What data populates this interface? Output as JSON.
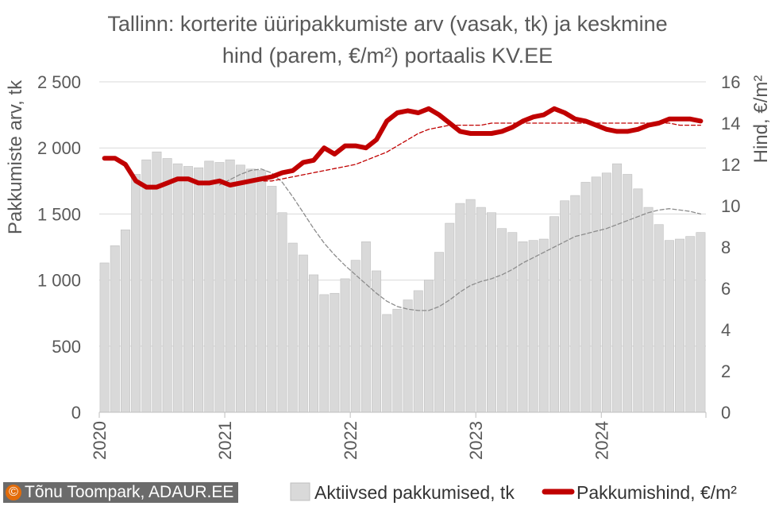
{
  "chart_data": {
    "type": "bar+line",
    "title_line1": "Tallinn: korterite üüripakkumiste arv (vasak, tk) ja keskmine",
    "title_line2": "hind (parem, €/m²) portaalis KV.EE",
    "ylabel_left": "Pakkumiste arv, tk",
    "ylabel_right": "Hind, €/m²",
    "ylim_left": [
      0,
      2500
    ],
    "ylim_right": [
      0,
      16
    ],
    "yticks_left": [
      {
        "value": 0,
        "label": "0"
      },
      {
        "value": 500,
        "label": "500"
      },
      {
        "value": 1000,
        "label": "1 000"
      },
      {
        "value": 1500,
        "label": "1 500"
      },
      {
        "value": 2000,
        "label": "2 000"
      },
      {
        "value": 2500,
        "label": "2 500"
      }
    ],
    "yticks_right": [
      {
        "value": 0,
        "label": "0"
      },
      {
        "value": 2,
        "label": "2"
      },
      {
        "value": 4,
        "label": "4"
      },
      {
        "value": 6,
        "label": "6"
      },
      {
        "value": 8,
        "label": "8"
      },
      {
        "value": 10,
        "label": "10"
      },
      {
        "value": 12,
        "label": "12"
      },
      {
        "value": 14,
        "label": "14"
      },
      {
        "value": 16,
        "label": "16"
      }
    ],
    "xticks": [
      {
        "index": 0,
        "label": "2020"
      },
      {
        "index": 12,
        "label": "2021"
      },
      {
        "index": 24,
        "label": "2022"
      },
      {
        "index": 36,
        "label": "2023"
      },
      {
        "index": 48,
        "label": "2024"
      }
    ],
    "months_count": 58,
    "grid": "horizontal",
    "legend_position": "bottom",
    "series": [
      {
        "name": "Aktiivsed pakkumised, tk",
        "type": "bar",
        "axis": "left",
        "color": "#d9d9d9",
        "values": [
          1130,
          1260,
          1380,
          1800,
          1910,
          1970,
          1920,
          1880,
          1860,
          1850,
          1900,
          1890,
          1910,
          1870,
          1840,
          1830,
          1710,
          1510,
          1280,
          1190,
          1040,
          890,
          900,
          1010,
          1150,
          1290,
          1070,
          740,
          780,
          850,
          920,
          1000,
          1210,
          1430,
          1580,
          1610,
          1550,
          1510,
          1390,
          1360,
          1290,
          1300,
          1310,
          1480,
          1600,
          1640,
          1740,
          1780,
          1810,
          1880,
          1800,
          1690,
          1550,
          1420,
          1300,
          1310,
          1330,
          1360
        ]
      },
      {
        "name": "",
        "type": "line-dashed",
        "axis": "left",
        "color": "#8c8c8c",
        "values": [
          null,
          null,
          null,
          null,
          null,
          null,
          null,
          null,
          null,
          null,
          null,
          1720,
          1760,
          1800,
          1830,
          1840,
          1810,
          1740,
          1630,
          1510,
          1390,
          1280,
          1190,
          1110,
          1040,
          970,
          900,
          840,
          800,
          780,
          770,
          770,
          800,
          850,
          910,
          960,
          990,
          1010,
          1040,
          1080,
          1130,
          1170,
          1210,
          1250,
          1290,
          1330,
          1350,
          1370,
          1390,
          1420,
          1450,
          1480,
          1510,
          1530,
          1540,
          1530,
          1520,
          1500
        ]
      },
      {
        "name": "Pakkumishind, €/m²",
        "type": "line",
        "axis": "right",
        "color": "#c00000",
        "values": [
          12.3,
          12.3,
          12.0,
          11.2,
          10.9,
          10.9,
          11.1,
          11.3,
          11.3,
          11.1,
          11.1,
          11.2,
          11.0,
          11.1,
          11.2,
          11.3,
          11.4,
          11.6,
          11.7,
          12.1,
          12.2,
          12.8,
          12.5,
          12.9,
          12.9,
          12.8,
          13.2,
          14.1,
          14.5,
          14.6,
          14.5,
          14.7,
          14.4,
          14.0,
          13.6,
          13.5,
          13.5,
          13.5,
          13.6,
          13.8,
          14.1,
          14.3,
          14.4,
          14.7,
          14.5,
          14.2,
          14.1,
          13.9,
          13.7,
          13.6,
          13.6,
          13.7,
          13.9,
          14.0,
          14.2,
          14.2,
          14.2,
          14.1
        ]
      },
      {
        "name": "",
        "type": "line-dashed",
        "axis": "right",
        "color": "#c00000",
        "values": [
          null,
          null,
          null,
          null,
          null,
          null,
          null,
          null,
          null,
          null,
          null,
          11.2,
          11.1,
          11.1,
          11.2,
          11.2,
          11.2,
          11.3,
          11.4,
          11.5,
          11.6,
          11.7,
          11.8,
          11.9,
          12.0,
          12.2,
          12.4,
          12.6,
          12.9,
          13.2,
          13.5,
          13.7,
          13.8,
          13.9,
          13.9,
          13.9,
          13.9,
          14.0,
          14.0,
          14.0,
          14.0,
          14.0,
          14.0,
          14.0,
          14.0,
          14.0,
          14.0,
          14.0,
          14.0,
          14.0,
          14.0,
          14.0,
          14.0,
          14.0,
          14.0,
          13.9,
          13.9,
          13.9
        ]
      }
    ]
  },
  "legend": {
    "bars_label": "Aktiivsed pakkumised, tk",
    "line_label": "Pakkumishind, €/m²"
  },
  "credit": {
    "symbol": "©",
    "text": "Tõnu Toompark, ADAUR.EE"
  }
}
